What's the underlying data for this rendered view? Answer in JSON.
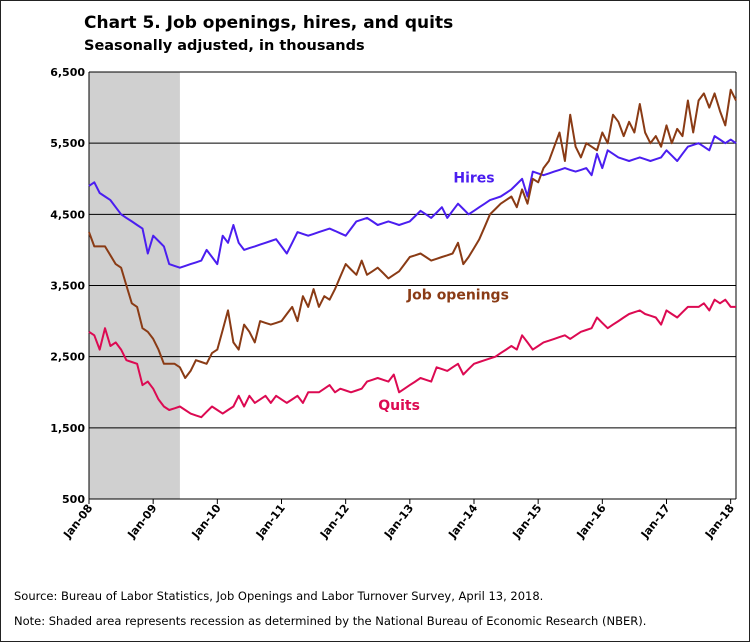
{
  "title": "Chart 5. Job openings, hires, and quits",
  "subtitle": "Seasonally adjusted, in thousands",
  "source": "Source: Bureau of Labor Statistics, Job Openings and Labor Turnover Survey, April 13, 2018.",
  "note": "Note: Shaded area represents recession as determined by the National Bureau of Economic Research (NBER).",
  "colors": {
    "hires": "#4b1ef0",
    "openings": "#8a3b15",
    "quits": "#dc0a52",
    "recession": "#d0d0d0",
    "grid": "#000000"
  },
  "chart_data": {
    "type": "line",
    "xlabel": "",
    "ylabel": "",
    "ylim": [
      500,
      6500
    ],
    "yticks": [
      500,
      1500,
      2500,
      3500,
      4500,
      5500,
      6500
    ],
    "ytick_labels": [
      "500",
      "1,500",
      "2,500",
      "3,500",
      "4,500",
      "5,500",
      "6,500"
    ],
    "xticks": [
      "Jan-08",
      "Jan-09",
      "Jan-10",
      "Jan-11",
      "Jan-12",
      "Jan-13",
      "Jan-14",
      "Jan-15",
      "Jan-16",
      "Jan-17",
      "Jan-18"
    ],
    "x_start": "Jan-08",
    "x_end": "Feb-18",
    "recession": {
      "start": "Jan-08",
      "end": "Jun-09"
    },
    "grid": "horizontal",
    "series": [
      {
        "name": "Hires",
        "color_key": "hires",
        "keyframes": [
          [
            "Jan-08",
            4900
          ],
          [
            "Feb-08",
            4950
          ],
          [
            "Mar-08",
            4800
          ],
          [
            "May-08",
            4700
          ],
          [
            "Jul-08",
            4500
          ],
          [
            "Sep-08",
            4400
          ],
          [
            "Nov-08",
            4300
          ],
          [
            "Dec-08",
            3950
          ],
          [
            "Jan-09",
            4200
          ],
          [
            "Mar-09",
            4050
          ],
          [
            "Apr-09",
            3800
          ],
          [
            "Jun-09",
            3750
          ],
          [
            "Aug-09",
            3800
          ],
          [
            "Oct-09",
            3850
          ],
          [
            "Nov-09",
            4000
          ],
          [
            "Jan-10",
            3800
          ],
          [
            "Feb-10",
            4200
          ],
          [
            "Mar-10",
            4100
          ],
          [
            "Apr-10",
            4350
          ],
          [
            "May-10",
            4100
          ],
          [
            "Jun-10",
            4000
          ],
          [
            "Aug-10",
            4050
          ],
          [
            "Oct-10",
            4100
          ],
          [
            "Dec-10",
            4150
          ],
          [
            "Feb-11",
            3950
          ],
          [
            "Apr-11",
            4250
          ],
          [
            "Jun-11",
            4200
          ],
          [
            "Aug-11",
            4250
          ],
          [
            "Oct-11",
            4300
          ],
          [
            "Jan-12",
            4200
          ],
          [
            "Mar-12",
            4400
          ],
          [
            "May-12",
            4450
          ],
          [
            "Jul-12",
            4350
          ],
          [
            "Sep-12",
            4400
          ],
          [
            "Nov-12",
            4350
          ],
          [
            "Jan-13",
            4400
          ],
          [
            "Mar-13",
            4550
          ],
          [
            "May-13",
            4450
          ],
          [
            "Jul-13",
            4600
          ],
          [
            "Aug-13",
            4450
          ],
          [
            "Oct-13",
            4650
          ],
          [
            "Dec-13",
            4500
          ],
          [
            "Feb-14",
            4600
          ],
          [
            "Apr-14",
            4700
          ],
          [
            "Jun-14",
            4750
          ],
          [
            "Aug-14",
            4850
          ],
          [
            "Oct-14",
            5000
          ],
          [
            "Nov-14",
            4750
          ],
          [
            "Dec-14",
            5100
          ],
          [
            "Feb-15",
            5050
          ],
          [
            "Apr-15",
            5100
          ],
          [
            "Jun-15",
            5150
          ],
          [
            "Aug-15",
            5100
          ],
          [
            "Oct-15",
            5150
          ],
          [
            "Nov-15",
            5050
          ],
          [
            "Dec-15",
            5350
          ],
          [
            "Jan-16",
            5150
          ],
          [
            "Feb-16",
            5400
          ],
          [
            "Apr-16",
            5300
          ],
          [
            "Jun-16",
            5250
          ],
          [
            "Aug-16",
            5300
          ],
          [
            "Oct-16",
            5250
          ],
          [
            "Dec-16",
            5300
          ],
          [
            "Jan-17",
            5400
          ],
          [
            "Mar-17",
            5250
          ],
          [
            "May-17",
            5450
          ],
          [
            "Jul-17",
            5500
          ],
          [
            "Sep-17",
            5400
          ],
          [
            "Oct-17",
            5600
          ],
          [
            "Dec-17",
            5500
          ],
          [
            "Jan-18",
            5550
          ],
          [
            "Feb-18",
            5500
          ]
        ]
      },
      {
        "name": "Job openings",
        "color_key": "openings",
        "keyframes": [
          [
            "Jan-08",
            4250
          ],
          [
            "Feb-08",
            4050
          ],
          [
            "Apr-08",
            4050
          ],
          [
            "Jun-08",
            3800
          ],
          [
            "Jul-08",
            3750
          ],
          [
            "Aug-08",
            3500
          ],
          [
            "Sep-08",
            3250
          ],
          [
            "Oct-08",
            3200
          ],
          [
            "Nov-08",
            2900
          ],
          [
            "Dec-08",
            2850
          ],
          [
            "Jan-09",
            2750
          ],
          [
            "Feb-09",
            2600
          ],
          [
            "Mar-09",
            2400
          ],
          [
            "May-09",
            2400
          ],
          [
            "Jun-09",
            2350
          ],
          [
            "Jul-09",
            2200
          ],
          [
            "Aug-09",
            2300
          ],
          [
            "Sep-09",
            2450
          ],
          [
            "Nov-09",
            2400
          ],
          [
            "Dec-09",
            2550
          ],
          [
            "Jan-10",
            2600
          ],
          [
            "Mar-10",
            3150
          ],
          [
            "Apr-10",
            2700
          ],
          [
            "May-10",
            2600
          ],
          [
            "Jun-10",
            2950
          ],
          [
            "Jul-10",
            2850
          ],
          [
            "Aug-10",
            2700
          ],
          [
            "Sep-10",
            3000
          ],
          [
            "Nov-10",
            2950
          ],
          [
            "Jan-11",
            3000
          ],
          [
            "Mar-11",
            3200
          ],
          [
            "Apr-11",
            3000
          ],
          [
            "May-11",
            3350
          ],
          [
            "Jun-11",
            3200
          ],
          [
            "Jul-11",
            3450
          ],
          [
            "Aug-11",
            3200
          ],
          [
            "Sep-11",
            3350
          ],
          [
            "Oct-11",
            3300
          ],
          [
            "Nov-11",
            3450
          ],
          [
            "Jan-12",
            3800
          ],
          [
            "Mar-12",
            3650
          ],
          [
            "Apr-12",
            3850
          ],
          [
            "May-12",
            3650
          ],
          [
            "Jul-12",
            3750
          ],
          [
            "Sep-12",
            3600
          ],
          [
            "Nov-12",
            3700
          ],
          [
            "Jan-13",
            3900
          ],
          [
            "Mar-13",
            3950
          ],
          [
            "May-13",
            3850
          ],
          [
            "Jul-13",
            3900
          ],
          [
            "Sep-13",
            3950
          ],
          [
            "Oct-13",
            4100
          ],
          [
            "Nov-13",
            3800
          ],
          [
            "Dec-13",
            3900
          ],
          [
            "Feb-14",
            4150
          ],
          [
            "Apr-14",
            4500
          ],
          [
            "Jun-14",
            4650
          ],
          [
            "Aug-14",
            4750
          ],
          [
            "Sep-14",
            4600
          ],
          [
            "Oct-14",
            4850
          ],
          [
            "Nov-14",
            4650
          ],
          [
            "Dec-14",
            5000
          ],
          [
            "Jan-15",
            4950
          ],
          [
            "Feb-15",
            5150
          ],
          [
            "Mar-15",
            5250
          ],
          [
            "Apr-15",
            5450
          ],
          [
            "May-15",
            5650
          ],
          [
            "Jun-15",
            5250
          ],
          [
            "Jul-15",
            5900
          ],
          [
            "Aug-15",
            5450
          ],
          [
            "Sep-15",
            5300
          ],
          [
            "Oct-15",
            5500
          ],
          [
            "Nov-15",
            5450
          ],
          [
            "Dec-15",
            5400
          ],
          [
            "Jan-16",
            5650
          ],
          [
            "Feb-16",
            5500
          ],
          [
            "Mar-16",
            5900
          ],
          [
            "Apr-16",
            5800
          ],
          [
            "May-16",
            5600
          ],
          [
            "Jun-16",
            5800
          ],
          [
            "Jul-16",
            5650
          ],
          [
            "Aug-16",
            6050
          ],
          [
            "Sep-16",
            5650
          ],
          [
            "Oct-16",
            5500
          ],
          [
            "Nov-16",
            5600
          ],
          [
            "Dec-16",
            5450
          ],
          [
            "Jan-17",
            5750
          ],
          [
            "Feb-17",
            5500
          ],
          [
            "Mar-17",
            5700
          ],
          [
            "Apr-17",
            5600
          ],
          [
            "May-17",
            6100
          ],
          [
            "Jun-17",
            5650
          ],
          [
            "Jul-17",
            6100
          ],
          [
            "Aug-17",
            6200
          ],
          [
            "Sep-17",
            6000
          ],
          [
            "Oct-17",
            6200
          ],
          [
            "Nov-17",
            5950
          ],
          [
            "Dec-17",
            5750
          ],
          [
            "Jan-18",
            6250
          ],
          [
            "Feb-18",
            6100
          ]
        ]
      },
      {
        "name": "Quits",
        "color_key": "quits",
        "keyframes": [
          [
            "Jan-08",
            2850
          ],
          [
            "Feb-08",
            2800
          ],
          [
            "Mar-08",
            2600
          ],
          [
            "Apr-08",
            2900
          ],
          [
            "May-08",
            2650
          ],
          [
            "Jun-08",
            2700
          ],
          [
            "Jul-08",
            2600
          ],
          [
            "Aug-08",
            2450
          ],
          [
            "Oct-08",
            2400
          ],
          [
            "Nov-08",
            2100
          ],
          [
            "Dec-08",
            2150
          ],
          [
            "Jan-09",
            2050
          ],
          [
            "Feb-09",
            1900
          ],
          [
            "Mar-09",
            1800
          ],
          [
            "Apr-09",
            1750
          ],
          [
            "Jun-09",
            1800
          ],
          [
            "Aug-09",
            1700
          ],
          [
            "Oct-09",
            1650
          ],
          [
            "Dec-09",
            1800
          ],
          [
            "Jan-10",
            1750
          ],
          [
            "Feb-10",
            1700
          ],
          [
            "Apr-10",
            1800
          ],
          [
            "May-10",
            1950
          ],
          [
            "Jun-10",
            1800
          ],
          [
            "Jul-10",
            1950
          ],
          [
            "Aug-10",
            1850
          ],
          [
            "Oct-10",
            1950
          ],
          [
            "Nov-10",
            1850
          ],
          [
            "Dec-10",
            1950
          ],
          [
            "Feb-11",
            1850
          ],
          [
            "Apr-11",
            1950
          ],
          [
            "May-11",
            1850
          ],
          [
            "Jun-11",
            2000
          ],
          [
            "Aug-11",
            2000
          ],
          [
            "Oct-11",
            2100
          ],
          [
            "Nov-11",
            2000
          ],
          [
            "Dec-11",
            2050
          ],
          [
            "Feb-12",
            2000
          ],
          [
            "Apr-12",
            2050
          ],
          [
            "May-12",
            2150
          ],
          [
            "Jul-12",
            2200
          ],
          [
            "Sep-12",
            2150
          ],
          [
            "Oct-12",
            2250
          ],
          [
            "Nov-12",
            2000
          ],
          [
            "Jan-13",
            2100
          ],
          [
            "Mar-13",
            2200
          ],
          [
            "May-13",
            2150
          ],
          [
            "Jun-13",
            2350
          ],
          [
            "Aug-13",
            2300
          ],
          [
            "Oct-13",
            2400
          ],
          [
            "Nov-13",
            2250
          ],
          [
            "Jan-14",
            2400
          ],
          [
            "Mar-14",
            2450
          ],
          [
            "May-14",
            2500
          ],
          [
            "Jun-14",
            2550
          ],
          [
            "Aug-14",
            2650
          ],
          [
            "Sep-14",
            2600
          ],
          [
            "Oct-14",
            2800
          ],
          [
            "Nov-14",
            2700
          ],
          [
            "Dec-14",
            2600
          ],
          [
            "Feb-15",
            2700
          ],
          [
            "Apr-15",
            2750
          ],
          [
            "Jun-15",
            2800
          ],
          [
            "Jul-15",
            2750
          ],
          [
            "Sep-15",
            2850
          ],
          [
            "Nov-15",
            2900
          ],
          [
            "Dec-15",
            3050
          ],
          [
            "Feb-16",
            2900
          ],
          [
            "Apr-16",
            3000
          ],
          [
            "Jun-16",
            3100
          ],
          [
            "Aug-16",
            3150
          ],
          [
            "Sep-16",
            3100
          ],
          [
            "Nov-16",
            3050
          ],
          [
            "Dec-16",
            2950
          ],
          [
            "Jan-17",
            3150
          ],
          [
            "Mar-17",
            3050
          ],
          [
            "May-17",
            3200
          ],
          [
            "Jul-17",
            3200
          ],
          [
            "Aug-17",
            3250
          ],
          [
            "Sep-17",
            3150
          ],
          [
            "Oct-17",
            3300
          ],
          [
            "Nov-17",
            3250
          ],
          [
            "Dec-17",
            3300
          ],
          [
            "Jan-18",
            3200
          ],
          [
            "Feb-18",
            3200
          ]
        ]
      }
    ],
    "annotations": [
      {
        "text": "Hires",
        "series": "Hires",
        "at": [
          "Jan-14",
          4950
        ]
      },
      {
        "text": "Job openings",
        "series": "Job openings",
        "at": [
          "Oct-13",
          3300
        ]
      },
      {
        "text": "Quits",
        "series": "Quits",
        "at": [
          "Nov-12",
          1750
        ]
      }
    ]
  }
}
